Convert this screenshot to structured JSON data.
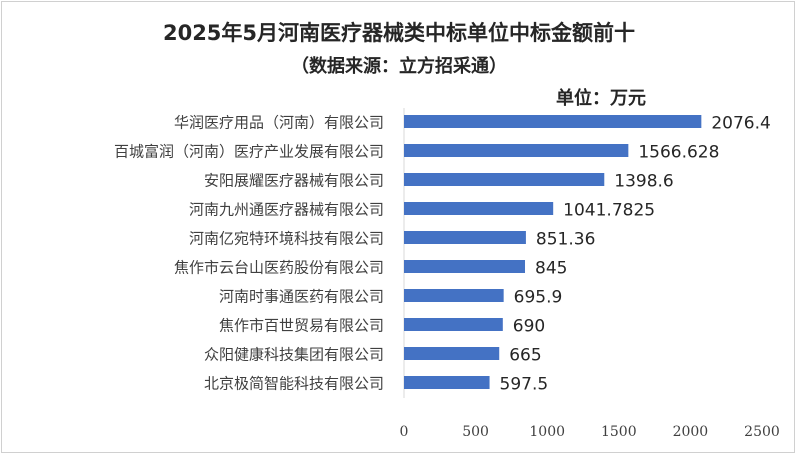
{
  "chart_data": {
    "type": "bar",
    "orientation": "horizontal",
    "title": "2025年5月河南医疗器械类中标单位中标金额前十",
    "subtitle": "（数据来源：立方招采通）",
    "unit_label": "单位：万元",
    "categories": [
      "华润医疗用品（河南）有限公司",
      "百城富润（河南）医疗产业发展有限公司",
      "安阳展耀医疗器械有限公司",
      "河南九州通医疗器械有限公司",
      "河南亿宛特环境科技有限公司",
      "焦作市云台山医药股份有限公司",
      "河南时事通医药有限公司",
      "焦作市百世贸易有限公司",
      "众阳健康科技集团有限公司",
      "北京极简智能科技有限公司"
    ],
    "values": [
      2076.4,
      1566.628,
      1398.6,
      1041.7825,
      851.36,
      845,
      695.9,
      690,
      665,
      597.5
    ],
    "data_labels": [
      "2076.4",
      "1566.628",
      "1398.6",
      "1041.7825",
      "851.36",
      "845",
      "695.9",
      "690",
      "665",
      "597.5"
    ],
    "xlim": [
      0,
      2500
    ],
    "x_ticks": [
      0,
      500,
      1000,
      1500,
      2000,
      2500
    ],
    "grid": false,
    "legend": "none",
    "bar_color": "#4472c4"
  }
}
